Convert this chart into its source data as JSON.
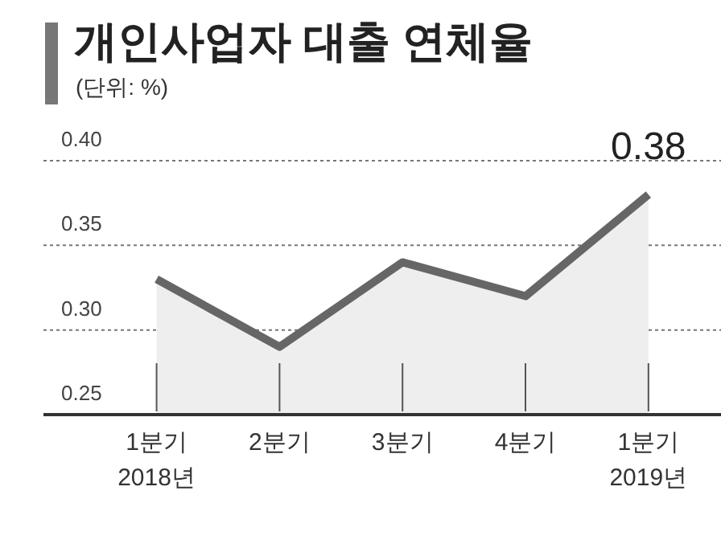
{
  "chart_data": {
    "type": "area",
    "title": "개인사업자 대출 연체율",
    "subtitle": "(단위: %)",
    "categories": [
      "1분기\n2018년",
      "2분기",
      "3분기",
      "4분기",
      "1분기\n2019년"
    ],
    "series": [
      {
        "color": "#666666",
        "values": [
          0.33,
          0.29,
          0.34,
          0.32,
          0.38
        ],
        "value_labels": [
          null,
          null,
          null,
          null,
          "0.38"
        ]
      }
    ],
    "ylim": [
      0.25,
      0.4
    ],
    "yticks": [
      0.25,
      {
        "value": 0.3,
        "label": "0.30"
      },
      0.35,
      {
        "value": 0.4,
        "label": "0.40"
      }
    ],
    "grid": "y",
    "legend": false,
    "marker": "none",
    "line_style": "solid"
  }
}
